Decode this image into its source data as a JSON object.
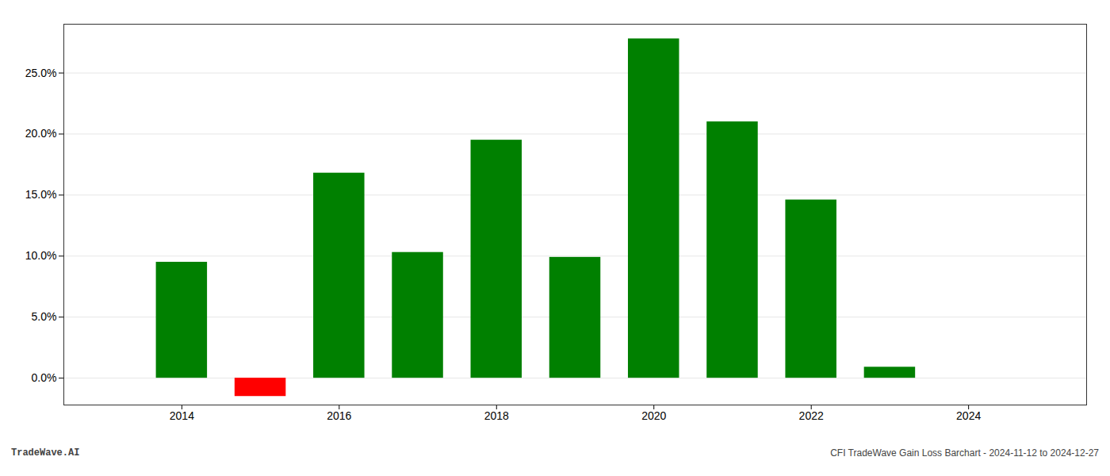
{
  "chart_data": {
    "type": "bar",
    "x": [
      2014,
      2015,
      2016,
      2017,
      2018,
      2019,
      2020,
      2021,
      2022,
      2023
    ],
    "values": [
      0.095,
      -0.015,
      0.168,
      0.103,
      0.195,
      0.099,
      0.278,
      0.21,
      0.146,
      0.009
    ],
    "colors": [
      "#008000",
      "#ff0000",
      "#008000",
      "#008000",
      "#008000",
      "#008000",
      "#008000",
      "#008000",
      "#008000",
      "#008000"
    ],
    "xlim": [
      2012.5,
      2025.5
    ],
    "xticks": [
      2014,
      2016,
      2018,
      2020,
      2022,
      2024
    ],
    "ylim": [
      -0.022,
      0.29
    ],
    "yticks": [
      {
        "value": 0.0,
        "label": "0.0%"
      },
      {
        "value": 0.05,
        "label": "5.0%"
      },
      {
        "value": 0.1,
        "label": "10.0%"
      },
      {
        "value": 0.15,
        "label": "15.0%"
      },
      {
        "value": 0.2,
        "label": "20.0%"
      },
      {
        "value": 0.25,
        "label": "25.0%"
      }
    ],
    "grid": true,
    "annotations": [
      "TradeWave.AI",
      "CFI TradeWave Gain Loss Barchart - 2024-11-12 to 2024-12-27"
    ]
  }
}
